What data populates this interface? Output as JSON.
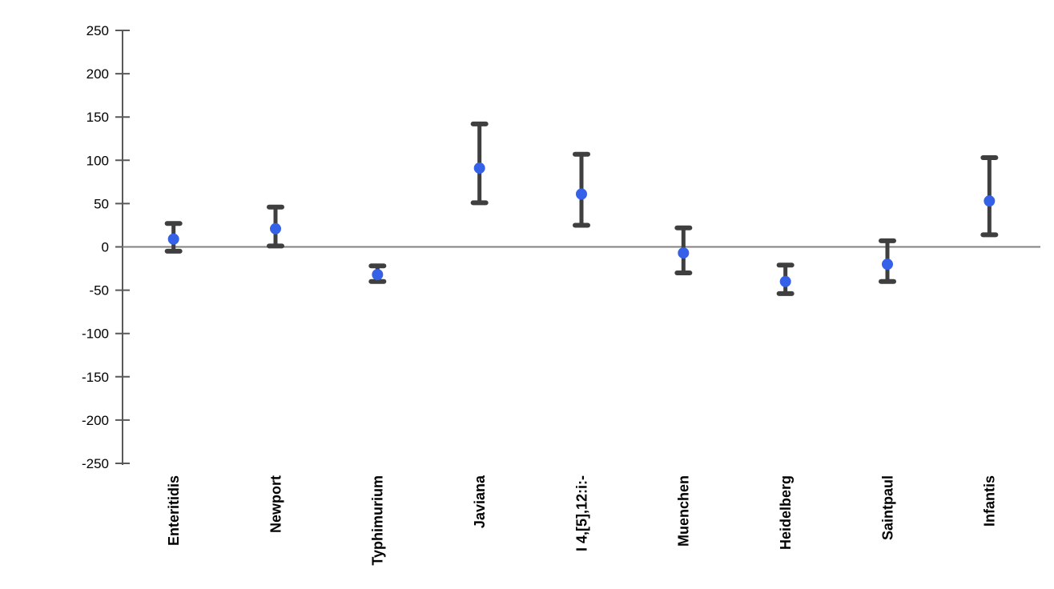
{
  "chart_data": {
    "type": "scatter",
    "subtype": "point-estimates-with-error-bars",
    "title": "",
    "xlabel": "",
    "ylabel": "",
    "categories": [
      "Enteritidis",
      "Newport",
      "Typhimurium",
      "Javiana",
      "I 4,[5],12:i:-",
      "Muenchen",
      "Heidelberg",
      "Saintpaul",
      "Infantis"
    ],
    "series": [
      {
        "name": "point-estimate",
        "values": [
          9,
          21,
          -32,
          91,
          61,
          -7,
          -40,
          -20,
          53
        ],
        "ci_low": [
          -5,
          1,
          -40,
          51,
          25,
          -30,
          -54,
          -40,
          14
        ],
        "ci_high": [
          27,
          46,
          -22,
          142,
          107,
          22,
          -21,
          7,
          103
        ]
      }
    ],
    "ylim": [
      -250,
      250
    ],
    "yticks": [
      250,
      200,
      150,
      100,
      50,
      0,
      -50,
      -100,
      -150,
      -200,
      -250
    ],
    "grid": false,
    "legend_position": "none",
    "zero_line": true,
    "colors": {
      "marker": "#3560E8",
      "error_bar": "#3F3F3F",
      "axis": "#595959",
      "zero_line": "#808080",
      "label_text": "#000000",
      "background": "#FFFFFF"
    }
  }
}
